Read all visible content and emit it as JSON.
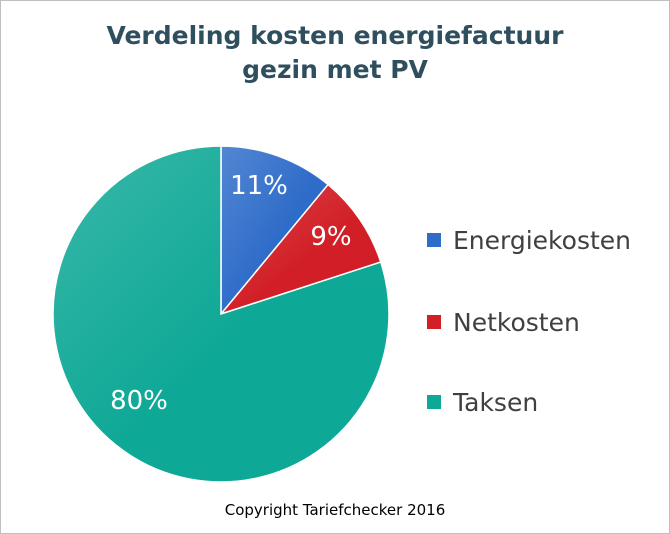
{
  "chart_data": {
    "type": "pie",
    "title_lines": [
      "Verdeling kosten energiefactuur",
      "gezin met PV"
    ],
    "categories": [
      "Energiekosten",
      "Netkosten",
      "Taksen"
    ],
    "values": [
      11,
      9,
      80
    ],
    "labels": [
      "11%",
      "9%",
      "80%"
    ],
    "colors": [
      "#2e6cc9",
      "#d21f27",
      "#0ea896"
    ],
    "legend_position": "right"
  },
  "footer": {
    "copyright": "Copyright Tariefchecker 2016"
  }
}
